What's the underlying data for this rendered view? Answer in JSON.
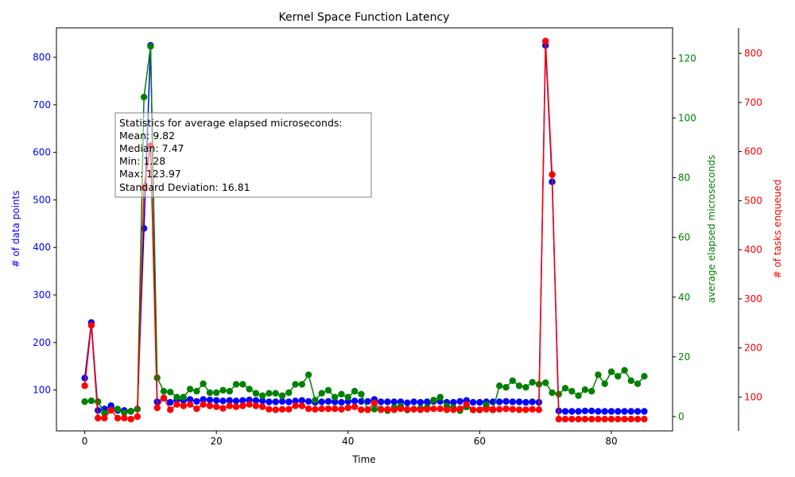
{
  "chart_data": {
    "type": "line",
    "title": "Kernel Space Function Latency",
    "xlabel": "Time",
    "xlim": [
      -4.3,
      89.3
    ],
    "x_ticks": [
      0,
      20,
      40,
      60,
      80
    ],
    "axes": {
      "left": {
        "label": "# of data points",
        "color": "#0000ff",
        "ylim": [
          14,
          862
        ],
        "ticks": [
          100,
          200,
          300,
          400,
          500,
          600,
          700,
          800
        ]
      },
      "right1": {
        "label": "average elapsed microseconds",
        "color": "#008000",
        "ylim": [
          -4.8,
          130.2
        ],
        "ticks": [
          0,
          20,
          40,
          60,
          80,
          100,
          120
        ]
      },
      "right2": {
        "label": "# of tasks enqueued",
        "color": "#ff0000",
        "ylim": [
          31,
          852
        ],
        "ticks": [
          100,
          200,
          300,
          400,
          500,
          600,
          700,
          800
        ]
      }
    },
    "x": [
      0,
      1,
      2,
      3,
      4,
      5,
      6,
      7,
      8,
      9,
      10,
      11,
      12,
      13,
      14,
      15,
      16,
      17,
      18,
      19,
      20,
      21,
      22,
      23,
      24,
      25,
      26,
      27,
      28,
      29,
      30,
      31,
      32,
      33,
      34,
      35,
      36,
      37,
      38,
      39,
      40,
      41,
      42,
      43,
      44,
      45,
      46,
      47,
      48,
      49,
      50,
      51,
      52,
      53,
      54,
      55,
      56,
      57,
      58,
      59,
      60,
      61,
      62,
      63,
      64,
      65,
      66,
      67,
      68,
      69,
      70,
      71,
      72,
      73,
      74,
      75,
      76,
      77,
      78,
      79,
      80,
      81,
      82,
      83,
      84,
      85
    ],
    "series": [
      {
        "name": "# of data points",
        "axis": "left",
        "color": "#0000ff",
        "values": [
          125,
          242,
          57,
          60,
          67,
          57,
          57,
          55,
          60,
          440,
          825,
          75,
          83,
          74,
          79,
          78,
          80,
          76,
          80,
          79,
          78,
          77,
          78,
          77,
          78,
          79,
          78,
          77,
          75,
          75,
          76,
          75,
          77,
          78,
          76,
          74,
          75,
          76,
          75,
          74,
          76,
          77,
          76,
          76,
          80,
          75,
          75,
          75,
          75,
          73,
          75,
          74,
          75,
          76,
          76,
          74,
          74,
          76,
          78,
          74,
          74,
          75,
          75,
          75,
          76,
          75,
          75,
          74,
          75,
          74,
          825,
          538,
          56,
          55,
          55,
          55,
          56,
          56,
          55,
          55,
          55,
          55,
          55,
          55,
          55,
          55
        ]
      },
      {
        "name": "average elapsed microseconds",
        "axis": "right1",
        "color": "#008000",
        "values": [
          5,
          5.3,
          5,
          1.2,
          2.2,
          2.5,
          1.3,
          1.8,
          2.5,
          107,
          124,
          13,
          8.5,
          8.2,
          6.5,
          6.5,
          9.2,
          8.5,
          11,
          8,
          8,
          8.8,
          8.5,
          10.8,
          10.8,
          9.2,
          7.8,
          7,
          7.8,
          7.8,
          7,
          8,
          10.8,
          10.8,
          14,
          5.5,
          7.8,
          8.8,
          6.5,
          7.5,
          6.5,
          8.5,
          7.5,
          2.3,
          2.5,
          2.5,
          2,
          3,
          3.5,
          2.2,
          2.5,
          2.8,
          3,
          5.5,
          6.5,
          3.5,
          3,
          2,
          3.2,
          2.2,
          2.2,
          4,
          2.2,
          10.3,
          9.8,
          12,
          10.3,
          9.8,
          11.5,
          10.8,
          11.3,
          8,
          7.5,
          9.5,
          8.5,
          7,
          9,
          8.5,
          14,
          11,
          15,
          13.5,
          15.5,
          12,
          11,
          13.5
        ]
      },
      {
        "name": "# of tasks enqueued",
        "axis": "right2",
        "color": "#ff0000",
        "values": [
          123,
          246,
          57,
          57,
          73,
          57,
          57,
          55,
          60,
          527,
          612,
          78,
          98,
          74,
          85,
          82,
          85,
          76,
          85,
          82,
          80,
          77,
          82,
          80,
          82,
          85,
          82,
          80,
          75,
          74,
          75,
          75,
          82,
          82,
          76,
          75,
          76,
          76,
          76,
          75,
          78,
          80,
          74,
          74,
          88,
          74,
          75,
          74,
          76,
          75,
          75,
          74,
          75,
          76,
          76,
          74,
          74,
          76,
          85,
          74,
          74,
          75,
          75,
          75,
          76,
          75,
          74,
          74,
          75,
          74,
          825,
          553,
          55,
          55,
          55,
          55,
          55,
          55,
          55,
          55,
          55,
          55,
          55,
          55,
          55,
          55
        ]
      }
    ],
    "stats_box": {
      "lines": [
        "Statistics for average elapsed microseconds:",
        "Mean: 9.82",
        "Median: 7.47",
        "Min: 1.28",
        "Max: 123.97",
        "Standard Deviation: 16.81"
      ]
    }
  }
}
